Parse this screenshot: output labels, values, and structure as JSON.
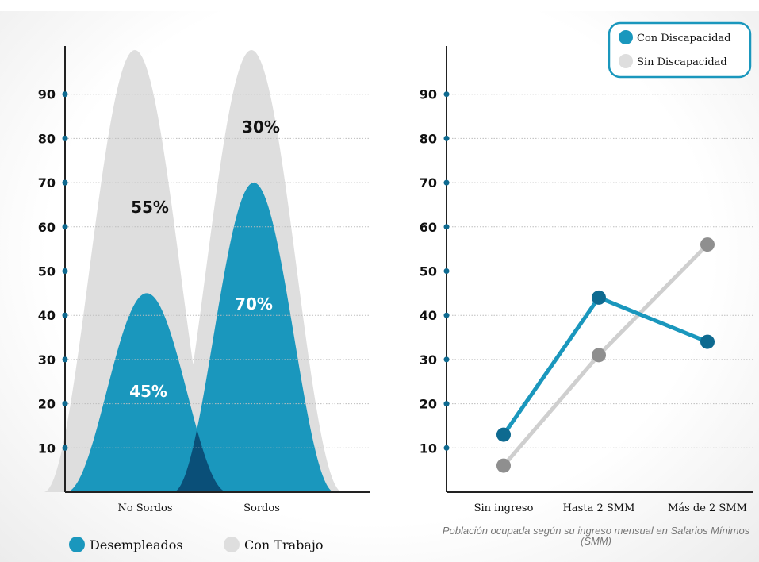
{
  "colors": {
    "blue": "#1a97bd",
    "dark_blue": "#0e6a90",
    "overlap_blue": "#0a4f78",
    "gray_light": "#dedede",
    "gray_line": "#cfcfcf",
    "gray_dot": "#8f8f8f",
    "axis": "#222222"
  },
  "legend_top": {
    "items": [
      {
        "label": "Con Discapacidad",
        "color": "#1a97bd"
      },
      {
        "label": "Sin Discapacidad",
        "color": "#dedede"
      }
    ]
  },
  "legend_bottom": {
    "items": [
      {
        "label": "Desempleados",
        "color": "#1a97bd"
      },
      {
        "label": "Con Trabajo",
        "color": "#dedede"
      }
    ]
  },
  "caption": "Población ocupada según su ingreso mensual en Salarios Mínimos (SMM)",
  "chart_data": [
    {
      "type": "area",
      "categories": [
        "No Sordos",
        "Sordos"
      ],
      "yticks": [
        10,
        20,
        30,
        40,
        50,
        60,
        70,
        80,
        90
      ],
      "ylim": [
        0,
        100
      ],
      "series": [
        {
          "name": "Con Trabajo",
          "values": [
            100,
            100
          ],
          "labels": [
            "55%",
            "30%"
          ]
        },
        {
          "name": "Desempleados",
          "values": [
            45,
            70
          ],
          "labels": [
            "45%",
            "70%"
          ]
        }
      ],
      "grid": true
    },
    {
      "type": "line",
      "categories": [
        "Sin ingreso",
        "Hasta 2 SMM",
        "Más de 2 SMM"
      ],
      "yticks": [
        10,
        20,
        30,
        40,
        50,
        60,
        70,
        80,
        90
      ],
      "ylim": [
        0,
        100
      ],
      "series": [
        {
          "name": "Con Discapacidad",
          "values": [
            13,
            44,
            34
          ]
        },
        {
          "name": "Sin Discapacidad",
          "values": [
            6,
            31,
            56
          ]
        }
      ],
      "grid": true
    }
  ]
}
